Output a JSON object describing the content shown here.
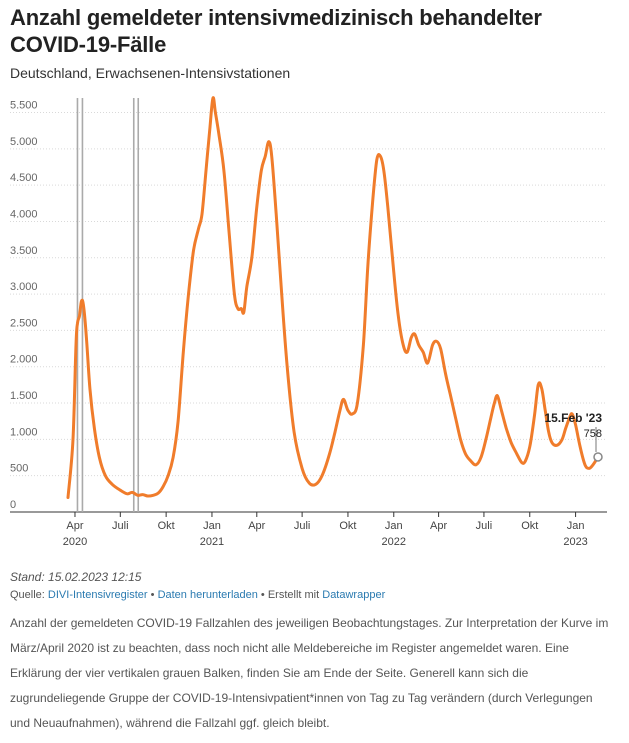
{
  "title": "Anzahl gemeldeter intensivmedizinisch behandelter COVID-19-Fälle",
  "subtitle": "Deutschland, Erwachsenen-Intensivstationen",
  "stand": "Stand: 15.02.2023 12:15",
  "source": {
    "prefix": "Quelle:",
    "register_link": "DIVI-Intensivregister",
    "sep1": "•",
    "download_link": "Daten herunterladen",
    "sep2": "•",
    "created_with": "Erstellt mit",
    "tool_link": "Datawrapper"
  },
  "note": "Anzahl der gemeldeten COVID-19 Fallzahlen des jeweiligen Beobachtungstages. Zur Interpretation der Kurve im März/April 2020 ist zu beachten, dass noch nicht alle Meldebereiche im Register angemeldet waren. Eine Erklärung der vier vertikalen grauen Balken, finden Sie am Ende der Seite. Generell kann sich die zugrundeliegende Gruppe der COVID-19-Intensivpatient*innen von Tag zu Tag verändern (durch Verlegungen und Neuaufnahmen), während die Fallzahl ggf. gleich bleibt.",
  "colors": {
    "line": "#f07c2b",
    "grid": "#d9d9d9",
    "bars": "#aaaaaa",
    "axis_text": "#666666"
  },
  "chart_data": {
    "type": "line",
    "title": "Anzahl gemeldeter intensivmedizinisch behandelter COVID-19-Fälle",
    "subtitle": "Deutschland, Erwachsenen-Intensivstationen",
    "ylim": [
      0,
      5700
    ],
    "yticks": [
      0,
      500,
      1000,
      1500,
      2000,
      2500,
      3000,
      3500,
      4000,
      4500,
      5000,
      5500
    ],
    "ytick_labels": [
      "0",
      "500",
      "1.000",
      "1.500",
      "2.000",
      "2.500",
      "3.000",
      "3.500",
      "4.000",
      "4.500",
      "5.000",
      "5.500"
    ],
    "xlim": [
      "2020-03-18",
      "2023-02-15"
    ],
    "xticks": [
      {
        "date": "2020-04-01",
        "label": "Apr",
        "year": "2020"
      },
      {
        "date": "2020-07-01",
        "label": "Juli",
        "year": ""
      },
      {
        "date": "2020-10-01",
        "label": "Okt",
        "year": ""
      },
      {
        "date": "2021-01-01",
        "label": "Jan",
        "year": "2021"
      },
      {
        "date": "2021-04-01",
        "label": "Apr",
        "year": ""
      },
      {
        "date": "2021-07-01",
        "label": "Juli",
        "year": ""
      },
      {
        "date": "2021-10-01",
        "label": "Okt",
        "year": ""
      },
      {
        "date": "2022-01-01",
        "label": "Jan",
        "year": "2022"
      },
      {
        "date": "2022-04-01",
        "label": "Apr",
        "year": ""
      },
      {
        "date": "2022-07-01",
        "label": "Juli",
        "year": ""
      },
      {
        "date": "2022-10-01",
        "label": "Okt",
        "year": ""
      },
      {
        "date": "2023-01-01",
        "label": "Jan",
        "year": "2023"
      }
    ],
    "grid": true,
    "vertical_bars": [
      "2020-04-06",
      "2020-04-16",
      "2020-07-28",
      "2020-08-06"
    ],
    "series": [
      {
        "values": [
          [
            "2020-03-18",
            200
          ],
          [
            "2020-03-28",
            1000
          ],
          [
            "2020-04-03",
            2300
          ],
          [
            "2020-04-06",
            2600
          ],
          [
            "2020-04-10",
            2700
          ],
          [
            "2020-04-14",
            2900
          ],
          [
            "2020-04-18",
            2850
          ],
          [
            "2020-04-24",
            2400
          ],
          [
            "2020-05-01",
            1700
          ],
          [
            "2020-05-10",
            1150
          ],
          [
            "2020-05-20",
            750
          ],
          [
            "2020-06-01",
            500
          ],
          [
            "2020-06-15",
            380
          ],
          [
            "2020-07-01",
            300
          ],
          [
            "2020-07-15",
            250
          ],
          [
            "2020-07-25",
            270
          ],
          [
            "2020-08-05",
            230
          ],
          [
            "2020-08-15",
            240
          ],
          [
            "2020-08-25",
            220
          ],
          [
            "2020-09-05",
            230
          ],
          [
            "2020-09-15",
            260
          ],
          [
            "2020-09-25",
            350
          ],
          [
            "2020-10-05",
            500
          ],
          [
            "2020-10-15",
            750
          ],
          [
            "2020-10-25",
            1250
          ],
          [
            "2020-11-05",
            2250
          ],
          [
            "2020-11-15",
            3000
          ],
          [
            "2020-11-25",
            3600
          ],
          [
            "2020-12-05",
            3900
          ],
          [
            "2020-12-12",
            4100
          ],
          [
            "2020-12-20",
            4700
          ],
          [
            "2020-12-28",
            5300
          ],
          [
            "2021-01-03",
            5700
          ],
          [
            "2021-01-08",
            5500
          ],
          [
            "2021-01-15",
            5200
          ],
          [
            "2021-01-25",
            4700
          ],
          [
            "2021-02-05",
            3800
          ],
          [
            "2021-02-15",
            3000
          ],
          [
            "2021-02-22",
            2800
          ],
          [
            "2021-03-01",
            2800
          ],
          [
            "2021-03-06",
            2750
          ],
          [
            "2021-03-12",
            3100
          ],
          [
            "2021-03-22",
            3500
          ],
          [
            "2021-04-01",
            4200
          ],
          [
            "2021-04-10",
            4700
          ],
          [
            "2021-04-18",
            4900
          ],
          [
            "2021-04-25",
            5100
          ],
          [
            "2021-05-01",
            4900
          ],
          [
            "2021-05-10",
            4100
          ],
          [
            "2021-05-20",
            3100
          ],
          [
            "2021-06-01",
            2000
          ],
          [
            "2021-06-15",
            1100
          ],
          [
            "2021-07-01",
            600
          ],
          [
            "2021-07-15",
            400
          ],
          [
            "2021-07-28",
            380
          ],
          [
            "2021-08-10",
            500
          ],
          [
            "2021-08-25",
            800
          ],
          [
            "2021-09-05",
            1100
          ],
          [
            "2021-09-15",
            1400
          ],
          [
            "2021-09-22",
            1550
          ],
          [
            "2021-10-01",
            1400
          ],
          [
            "2021-10-10",
            1350
          ],
          [
            "2021-10-20",
            1500
          ],
          [
            "2021-11-01",
            2300
          ],
          [
            "2021-11-10",
            3400
          ],
          [
            "2021-11-20",
            4300
          ],
          [
            "2021-11-28",
            4850
          ],
          [
            "2021-12-05",
            4900
          ],
          [
            "2021-12-12",
            4700
          ],
          [
            "2021-12-20",
            4200
          ],
          [
            "2022-01-01",
            3300
          ],
          [
            "2022-01-10",
            2700
          ],
          [
            "2022-01-20",
            2300
          ],
          [
            "2022-01-28",
            2200
          ],
          [
            "2022-02-05",
            2400
          ],
          [
            "2022-02-12",
            2450
          ],
          [
            "2022-02-20",
            2300
          ],
          [
            "2022-03-01",
            2200
          ],
          [
            "2022-03-10",
            2050
          ],
          [
            "2022-03-20",
            2300
          ],
          [
            "2022-03-28",
            2350
          ],
          [
            "2022-04-05",
            2250
          ],
          [
            "2022-04-15",
            1900
          ],
          [
            "2022-04-25",
            1600
          ],
          [
            "2022-05-05",
            1300
          ],
          [
            "2022-05-15",
            1000
          ],
          [
            "2022-05-25",
            800
          ],
          [
            "2022-06-05",
            700
          ],
          [
            "2022-06-15",
            650
          ],
          [
            "2022-06-25",
            750
          ],
          [
            "2022-07-05",
            1000
          ],
          [
            "2022-07-15",
            1300
          ],
          [
            "2022-07-22",
            1500
          ],
          [
            "2022-07-28",
            1600
          ],
          [
            "2022-08-05",
            1400
          ],
          [
            "2022-08-15",
            1150
          ],
          [
            "2022-08-25",
            950
          ],
          [
            "2022-09-05",
            800
          ],
          [
            "2022-09-15",
            680
          ],
          [
            "2022-09-22",
            700
          ],
          [
            "2022-10-01",
            900
          ],
          [
            "2022-10-10",
            1300
          ],
          [
            "2022-10-18",
            1750
          ],
          [
            "2022-10-25",
            1700
          ],
          [
            "2022-11-01",
            1400
          ],
          [
            "2022-11-08",
            1100
          ],
          [
            "2022-11-15",
            950
          ],
          [
            "2022-11-25",
            920
          ],
          [
            "2022-12-05",
            1000
          ],
          [
            "2022-12-12",
            1150
          ],
          [
            "2022-12-20",
            1300
          ],
          [
            "2022-12-25",
            1350
          ],
          [
            "2023-01-01",
            1200
          ],
          [
            "2023-01-10",
            900
          ],
          [
            "2023-01-20",
            650
          ],
          [
            "2023-01-28",
            600
          ],
          [
            "2023-02-05",
            650
          ],
          [
            "2023-02-15",
            758
          ]
        ]
      }
    ],
    "annotation": {
      "date": "2023-02-15",
      "value": 758,
      "label": "15.Feb '23",
      "value_label": "758"
    }
  }
}
